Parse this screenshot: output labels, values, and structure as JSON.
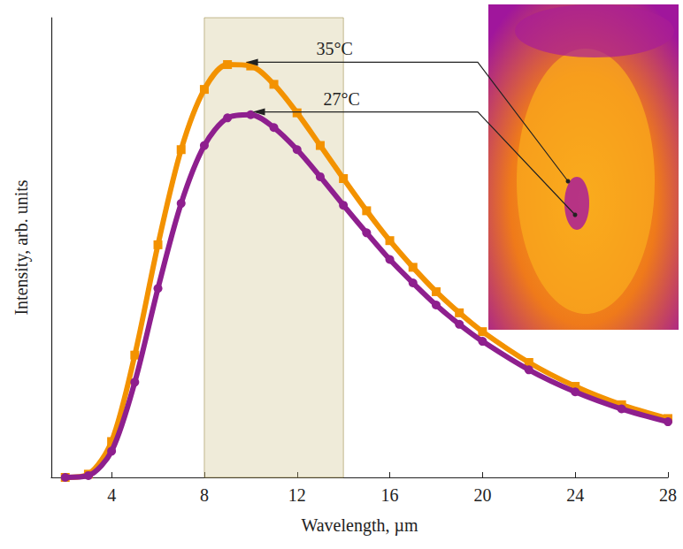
{
  "chart_data": {
    "type": "line",
    "x_label": "Wavelength, µm",
    "y_label": "Intensity, arb. units",
    "x": [
      2,
      3,
      4,
      5,
      6,
      7,
      8,
      9,
      10,
      11,
      12,
      13,
      14,
      15,
      16,
      17,
      18,
      19,
      20,
      22,
      24,
      26,
      28
    ],
    "series": [
      {
        "name": "35°C",
        "color": "#f39200",
        "marker": "square",
        "values": [
          0,
          0.7,
          7.8,
          26.6,
          50.6,
          71.3,
          84.4,
          89.8,
          89.5,
          85.5,
          79.3,
          72.2,
          65.0,
          58.0,
          51.5,
          45.7,
          40.4,
          35.8,
          31.7,
          25.0,
          19.8,
          15.8,
          12.8
        ]
      },
      {
        "name": "27°C",
        "color": "#8e1f8e",
        "marker": "circle",
        "values": [
          0,
          0.4,
          5.7,
          20.7,
          41.1,
          59.6,
          72.2,
          78.2,
          78.9,
          76.1,
          71.3,
          65.4,
          59.2,
          53.2,
          47.4,
          42.3,
          37.5,
          33.3,
          29.6,
          23.4,
          18.6,
          14.9,
          12.1
        ]
      }
    ],
    "xlim": [
      1.4,
      28
    ],
    "xticks": [
      4,
      8,
      12,
      16,
      20,
      24,
      28
    ],
    "ylim": [
      0,
      100
    ],
    "tick_labels": "x",
    "grid": false,
    "band": {
      "x": [
        8,
        14
      ]
    },
    "annotations": [
      {
        "text": "35°C",
        "x": 9.4,
        "y": 90.3
      },
      {
        "text": "27°C",
        "x": 9.7,
        "y": 79.5
      }
    ]
  }
}
